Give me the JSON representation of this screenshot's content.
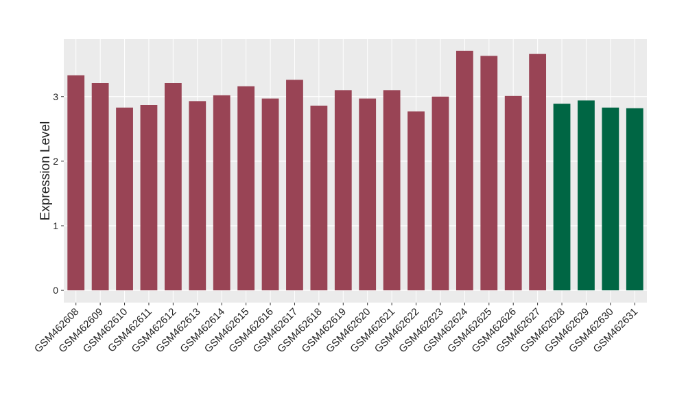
{
  "chart_data": {
    "type": "bar",
    "y_label": "Expression Level",
    "categories": [
      "GSM462608",
      "GSM462609",
      "GSM462610",
      "GSM462611",
      "GSM462612",
      "GSM462613",
      "GSM462614",
      "GSM462615",
      "GSM462616",
      "GSM462617",
      "GSM462618",
      "GSM462619",
      "GSM462620",
      "GSM462621",
      "GSM462622",
      "GSM462623",
      "GSM462624",
      "GSM462625",
      "GSM462626",
      "GSM462627",
      "GSM462628",
      "GSM462629",
      "GSM462630",
      "GSM462631"
    ],
    "values": [
      3.33,
      3.21,
      2.83,
      2.87,
      3.21,
      2.93,
      3.02,
      3.16,
      2.97,
      3.26,
      2.86,
      3.1,
      2.97,
      3.1,
      2.77,
      3.0,
      3.71,
      3.63,
      3.01,
      3.66,
      2.89,
      2.94,
      2.83,
      2.82
    ],
    "colors": [
      "#994455",
      "#994455",
      "#994455",
      "#994455",
      "#994455",
      "#994455",
      "#994455",
      "#994455",
      "#994455",
      "#994455",
      "#994455",
      "#994455",
      "#994455",
      "#994455",
      "#994455",
      "#994455",
      "#994455",
      "#994455",
      "#994455",
      "#994455",
      "#006644",
      "#006644",
      "#006644",
      "#006644"
    ],
    "ylim": [
      -0.19,
      3.89
    ],
    "yticks": [
      0,
      1,
      2,
      3
    ],
    "grid": true
  }
}
